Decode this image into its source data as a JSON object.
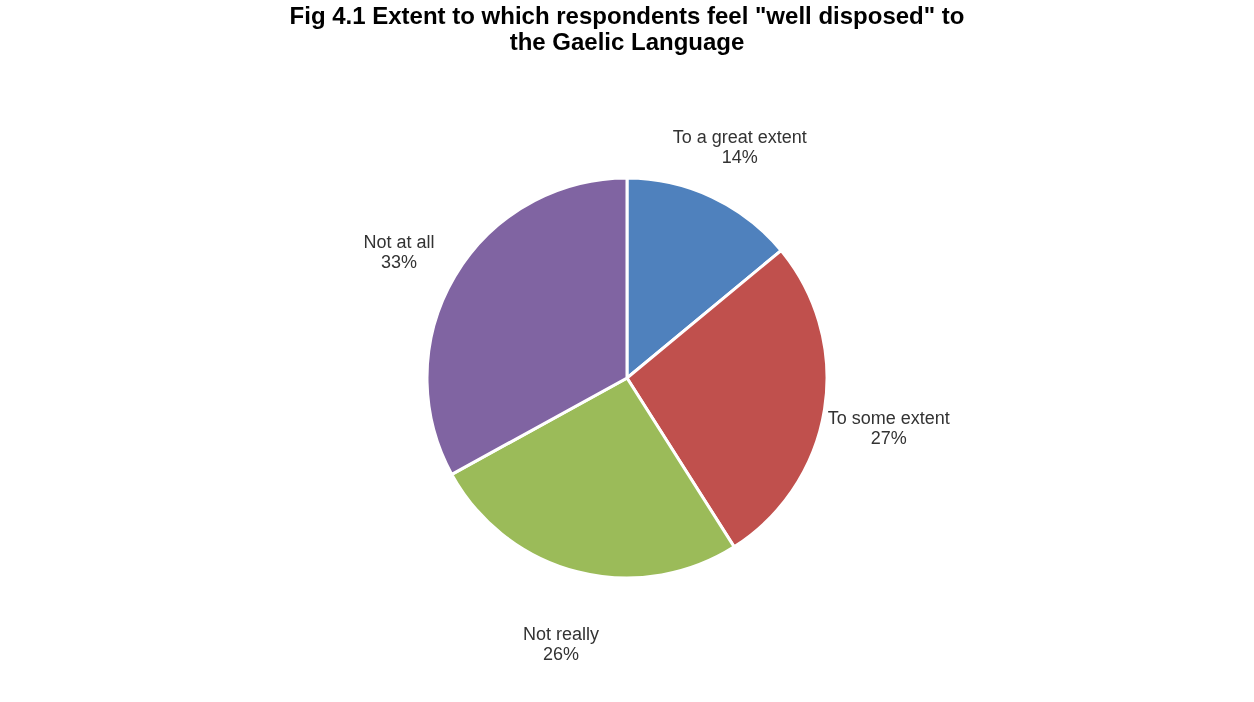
{
  "chart_data": {
    "type": "pie",
    "title": "Fig 4.1 Extent to which respondents feel \"well disposed\" to the Gaelic Language",
    "categories": [
      "To a great extent",
      "To some extent",
      "Not really",
      "Not at all"
    ],
    "values": [
      14,
      27,
      26,
      33
    ],
    "value_labels": [
      "14%",
      "27%",
      "26%",
      "33%"
    ],
    "colors": [
      "#4f81bd",
      "#c0504d",
      "#9bbb59",
      "#8064a2"
    ],
    "legend": false
  }
}
